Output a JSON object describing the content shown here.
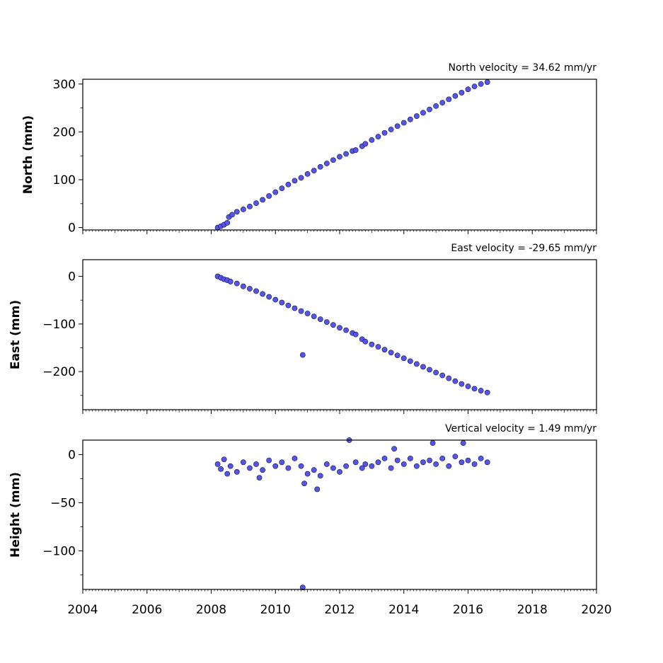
{
  "chart_data": [
    {
      "type": "scatter",
      "title": "North velocity = 34.62 mm/yr",
      "ylabel": "North (mm)",
      "xlim": [
        2004,
        2020
      ],
      "ylim": [
        -5,
        310
      ],
      "yticks": [
        0,
        100,
        200,
        300
      ],
      "ytick_labels": [
        "0",
        "100",
        "200",
        "300"
      ],
      "marker_color": "#5555ee",
      "series": [
        {
          "x": [
            2008.2,
            2008.3,
            2008.4,
            2008.5,
            2008.55,
            2008.65,
            2008.8,
            2009.0,
            2009.2,
            2009.4,
            2009.6,
            2009.8,
            2010.0,
            2010.2,
            2010.4,
            2010.6,
            2010.8,
            2011.0,
            2011.2,
            2011.4,
            2011.6,
            2011.8,
            2012.0,
            2012.2,
            2012.4,
            2012.5,
            2012.7,
            2012.8,
            2013.0,
            2013.2,
            2013.4,
            2013.6,
            2013.8,
            2014.0,
            2014.2,
            2014.4,
            2014.6,
            2014.8,
            2015.0,
            2015.2,
            2015.4,
            2015.6,
            2015.8,
            2016.0,
            2016.2,
            2016.4,
            2016.6
          ],
          "y": [
            0,
            3,
            6,
            10,
            22,
            27,
            33,
            38,
            44,
            51,
            58,
            66,
            74,
            82,
            90,
            98,
            104,
            112,
            119,
            127,
            134,
            141,
            148,
            154,
            160,
            162,
            170,
            175,
            183,
            190,
            198,
            205,
            212,
            219,
            226,
            233,
            240,
            247,
            254,
            261,
            268,
            275,
            282,
            289,
            295,
            300,
            304
          ]
        }
      ]
    },
    {
      "type": "scatter",
      "title": "East velocity = -29.65 mm/yr",
      "ylabel": "East (mm)",
      "xlim": [
        2004,
        2020
      ],
      "ylim": [
        -280,
        35
      ],
      "yticks": [
        0,
        -100,
        -200
      ],
      "ytick_labels": [
        "0",
        "−100",
        "−200"
      ],
      "marker_color": "#5555ee",
      "series": [
        {
          "x": [
            2008.2,
            2008.3,
            2008.4,
            2008.5,
            2008.6,
            2008.8,
            2009.0,
            2009.2,
            2009.4,
            2009.6,
            2009.8,
            2010.0,
            2010.2,
            2010.4,
            2010.6,
            2010.8,
            2010.85,
            2011.0,
            2011.2,
            2011.4,
            2011.6,
            2011.8,
            2012.0,
            2012.2,
            2012.4,
            2012.5,
            2012.7,
            2012.8,
            2013.0,
            2013.2,
            2013.4,
            2013.6,
            2013.8,
            2014.0,
            2014.2,
            2014.4,
            2014.6,
            2014.8,
            2015.0,
            2015.2,
            2015.4,
            2015.6,
            2015.8,
            2016.0,
            2016.2,
            2016.4,
            2016.6
          ],
          "y": [
            0,
            -3,
            -6,
            -8,
            -11,
            -15,
            -21,
            -26,
            -31,
            -37,
            -43,
            -49,
            -55,
            -61,
            -67,
            -73,
            -165,
            -78,
            -84,
            -90,
            -96,
            -102,
            -108,
            -113,
            -119,
            -122,
            -132,
            -137,
            -143,
            -148,
            -154,
            -160,
            -166,
            -172,
            -178,
            -184,
            -190,
            -196,
            -202,
            -208,
            -214,
            -220,
            -226,
            -231,
            -236,
            -240,
            -244
          ]
        }
      ]
    },
    {
      "type": "scatter",
      "title": "Vertical velocity = 1.49 mm/yr",
      "ylabel": "Height (mm)",
      "xlim": [
        2004,
        2020
      ],
      "ylim": [
        -140,
        15
      ],
      "yticks": [
        0,
        -50,
        -100
      ],
      "ytick_labels": [
        "0",
        "−50",
        "−100"
      ],
      "marker_color": "#5555ee",
      "series": [
        {
          "x": [
            2008.2,
            2008.3,
            2008.4,
            2008.5,
            2008.6,
            2008.8,
            2009.0,
            2009.2,
            2009.4,
            2009.6,
            2009.8,
            2010.0,
            2010.2,
            2010.4,
            2010.6,
            2010.8,
            2010.85,
            2011.0,
            2011.2,
            2011.4,
            2011.6,
            2011.8,
            2012.0,
            2012.2,
            2012.3,
            2012.5,
            2012.7,
            2012.8,
            2013.0,
            2013.2,
            2013.4,
            2013.6,
            2013.8,
            2014.0,
            2014.2,
            2014.4,
            2014.6,
            2014.8,
            2014.9,
            2015.0,
            2015.2,
            2015.4,
            2015.6,
            2015.8,
            2015.85,
            2016.0,
            2016.2,
            2016.4,
            2016.6,
            2011.3,
            2010.9,
            2009.5,
            2013.7
          ],
          "y": [
            -10,
            -15,
            -5,
            -20,
            -12,
            -18,
            -8,
            -14,
            -10,
            -16,
            -6,
            -12,
            -8,
            -14,
            -4,
            -12,
            -138,
            -20,
            -16,
            -22,
            -10,
            -14,
            -18,
            -12,
            15,
            -8,
            -14,
            -10,
            -12,
            -8,
            -4,
            -14,
            -6,
            -10,
            -4,
            -12,
            -8,
            -6,
            12,
            -10,
            -4,
            -12,
            -2,
            -8,
            12,
            -6,
            -10,
            -4,
            -8,
            -36,
            -30,
            -24,
            6
          ]
        }
      ]
    }
  ],
  "x_axis": {
    "tick_labels": [
      "2004",
      "2006",
      "2008",
      "2010",
      "2012",
      "2014",
      "2016",
      "2018",
      "2020"
    ],
    "ticks": [
      2004,
      2006,
      2008,
      2010,
      2012,
      2014,
      2016,
      2018,
      2020
    ]
  }
}
